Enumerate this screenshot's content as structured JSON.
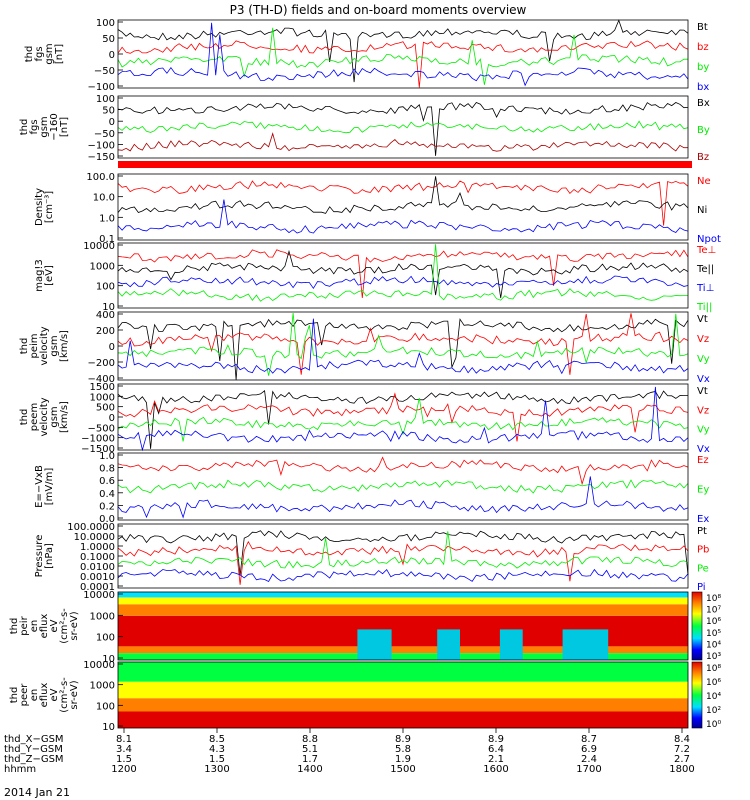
{
  "title": "P3 (TH-D) fields and on-board moments overview",
  "date_label": "2014 Jan 21",
  "colors": {
    "black": "#000000",
    "red": "#ff0000",
    "green": "#00ee00",
    "blue": "#0000ff",
    "darkred": "#aa0000"
  },
  "panels": [
    {
      "id": "fgs",
      "ylabel": [
        "thd",
        "fgs",
        "gsm",
        "[nT]"
      ],
      "ticks": [
        "100",
        "50",
        "0",
        "−50",
        "−100"
      ],
      "legend": [
        {
          "label": "Bt",
          "color": "black"
        },
        {
          "label": "bz",
          "color": "red"
        },
        {
          "label": "by",
          "color": "green"
        },
        {
          "label": "bx",
          "color": "blue"
        }
      ]
    },
    {
      "id": "fgs_dsl",
      "ylabel": [
        "thd",
        "fgs",
        "gsm",
        "−160",
        "[nT]"
      ],
      "ticks": [
        "100",
        "50",
        "0",
        "−50",
        "−100",
        "−150"
      ],
      "legend": [
        {
          "label": "Bx",
          "color": "black"
        },
        {
          "label": "By",
          "color": "green"
        },
        {
          "label": "Bz",
          "color": "darkred"
        }
      ]
    },
    {
      "id": "density",
      "ylabel": [
        "Density",
        "[cm⁻³]"
      ],
      "ticks": [
        "100.0",
        "10.0",
        "1.0",
        "0.1"
      ],
      "legend": [
        {
          "label": "Ne",
          "color": "red"
        },
        {
          "label": "Ni",
          "color": "black"
        },
        {
          "label": "Npot",
          "color": "blue"
        }
      ]
    },
    {
      "id": "temp",
      "ylabel": [
        "mag!3",
        "[eV]"
      ],
      "ticks": [
        "10000",
        "1000",
        "100",
        "10"
      ],
      "legend": [
        {
          "label": "Te⊥",
          "color": "red"
        },
        {
          "label": "Te||",
          "color": "black"
        },
        {
          "label": "Ti⊥",
          "color": "blue"
        },
        {
          "label": "Ti||",
          "color": "green"
        }
      ]
    },
    {
      "id": "vel_ion",
      "ylabel": [
        "thd",
        "peim",
        "velocity",
        "gsm",
        "[km/s]"
      ],
      "ticks": [
        "400",
        "200",
        "0",
        "−200",
        "−400"
      ],
      "legend": [
        {
          "label": "Vt",
          "color": "black"
        },
        {
          "label": "Vz",
          "color": "red"
        },
        {
          "label": "Vy",
          "color": "green"
        },
        {
          "label": "Vx",
          "color": "blue"
        }
      ]
    },
    {
      "id": "vel_e",
      "ylabel": [
        "thd",
        "peem",
        "velocity",
        "gsm",
        "[km/s]"
      ],
      "ticks": [
        "1500",
        "1000",
        "500",
        "0",
        "−500",
        "−1000",
        "−1500"
      ],
      "legend": [
        {
          "label": "Vt",
          "color": "black"
        },
        {
          "label": "Vz",
          "color": "red"
        },
        {
          "label": "Vy",
          "color": "green"
        },
        {
          "label": "Vx",
          "color": "blue"
        }
      ]
    },
    {
      "id": "efield",
      "ylabel": [
        "E=−VxB",
        "[mV/m]"
      ],
      "ticks": [
        "1.0",
        "0.8",
        "0.6",
        "0.4",
        "0.2",
        "0.0"
      ],
      "legend": [
        {
          "label": "Ez",
          "color": "red"
        },
        {
          "label": "Ey",
          "color": "green"
        },
        {
          "label": "Ex",
          "color": "blue"
        }
      ]
    },
    {
      "id": "pressure",
      "ylabel": [
        "Pressure",
        "[nPa]"
      ],
      "ticks": [
        "100.0000",
        "10.0000",
        "1.0000",
        "0.1000",
        "0.0100",
        "0.0010",
        "0.0001"
      ],
      "legend": [
        {
          "label": "Pt",
          "color": "black"
        },
        {
          "label": "Pb",
          "color": "red"
        },
        {
          "label": "Pe",
          "color": "green"
        },
        {
          "label": "Pi",
          "color": "blue"
        }
      ]
    },
    {
      "id": "peir",
      "ylabel": [
        "thd",
        "peir",
        "en",
        "eflux",
        "eV",
        "(cm²-s-",
        "sr-eV)"
      ],
      "ticks": [
        "10000",
        "1000",
        "100",
        "10"
      ],
      "colorbar": [
        "10⁸",
        "10⁷",
        "10⁶",
        "10⁵",
        "10⁴",
        "10³"
      ]
    },
    {
      "id": "peer",
      "ylabel": [
        "thd",
        "peer",
        "en",
        "eflux",
        "eV",
        "(cm²-s-",
        "sr-eV)"
      ],
      "ticks": [
        "10000",
        "1000",
        "100",
        "10"
      ],
      "colorbar": [
        "10⁸",
        "10⁶",
        "10⁴",
        "10²",
        "10⁰"
      ]
    }
  ],
  "xaxis": {
    "row_labels": [
      "thd_X−GSM",
      "thd_Y−GSM",
      "thd_Z−GSM",
      "hhmm"
    ],
    "columns": [
      [
        "8.1",
        "3.4",
        "1.5",
        "1200"
      ],
      [
        "8.5",
        "4.3",
        "1.5",
        "1300"
      ],
      [
        "8.8",
        "5.1",
        "1.7",
        "1400"
      ],
      [
        "8.9",
        "5.8",
        "1.9",
        "1500"
      ],
      [
        "8.9",
        "6.4",
        "2.1",
        "1600"
      ],
      [
        "8.7",
        "6.9",
        "2.4",
        "1700"
      ],
      [
        "8.4",
        "7.2",
        "2.7",
        "1800"
      ]
    ]
  }
}
